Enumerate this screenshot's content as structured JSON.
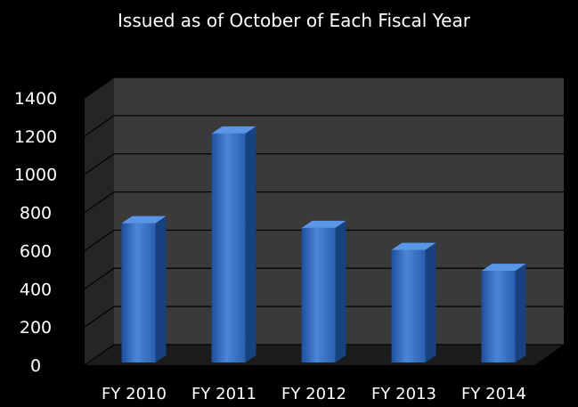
{
  "chart_data": {
    "type": "bar",
    "title": "Issued as of October of Each Fiscal Year",
    "categories": [
      "FY 2010",
      "FY 2011",
      "FY 2012",
      "FY 2013",
      "FY 2014"
    ],
    "values": [
      730,
      1200,
      705,
      590,
      480
    ],
    "ylim": [
      0,
      1400
    ],
    "yticks": [
      0,
      200,
      400,
      600,
      800,
      1000,
      1200,
      1400
    ],
    "grid": true,
    "legend": "none",
    "colors": {
      "background": "#000000",
      "plot_back_wall": "#3a3a3a",
      "plot_side_wall": "#252525",
      "plot_floor": "#1c1c1c",
      "gridline": "#000000",
      "bar_front_light": "#4a86d8",
      "bar_front_dark": "#1f4f9a",
      "bar_top": "#5a96e8",
      "bar_side": "#17427f",
      "text": "#ffffff"
    }
  }
}
